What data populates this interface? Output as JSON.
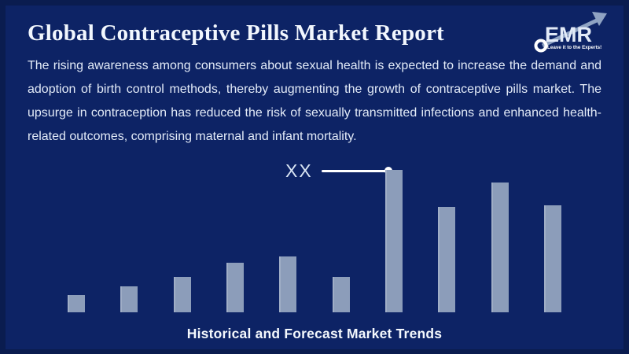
{
  "header": {
    "title": "Global Contraceptive Pills Market Report"
  },
  "logo": {
    "name": "EMR",
    "tagline": "Leave it to the Experts!"
  },
  "intro": {
    "lines": [
      "The rising awareness among consumers about sexual health is expected to increase the demand and",
      "adoption of birth control methods, thereby augmenting the growth of contraceptive pills market. The",
      "upsurge in contraception has reduced the risk of sexually transmitted infections and enhanced health-",
      "related outcomes, comprising maternal and infant mortality."
    ]
  },
  "colors": {
    "border_navy": "#0A1C4F",
    "panel_navy": "#0D2365",
    "bar_slate": "#8C9DBA",
    "text_white": "#F2F7FE",
    "callout_white": "#FFFFFF",
    "logo_arrow_slate": "#8FA3C3"
  },
  "chart_data": {
    "type": "bar",
    "title": "Historical and Forecast Market Trends",
    "categories": [
      "",
      "",
      "",
      "",
      "",
      "",
      "",
      "",
      "",
      ""
    ],
    "values": [
      12,
      18,
      25,
      35,
      39,
      25,
      100,
      74,
      91,
      75
    ],
    "ylim": [
      0,
      100
    ],
    "xlabel": "",
    "ylabel": "",
    "grid": false,
    "legend": false,
    "axes_visible": false,
    "annotation": {
      "label": "XX",
      "target_bar_index": 6,
      "style": "label with leader line and dot pointing to tallest bar"
    }
  }
}
